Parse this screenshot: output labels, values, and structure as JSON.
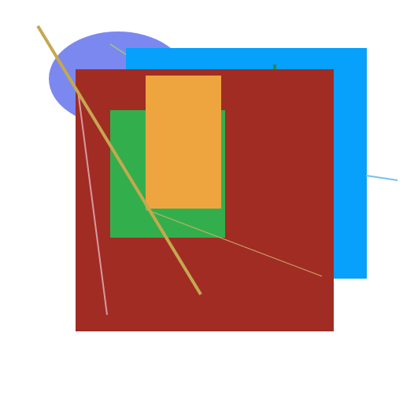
{
  "scene": {
    "background": "#ffffff",
    "shapes": {
      "ellipse": {
        "kind": "ellipse",
        "color": "#7b88ef"
      },
      "blue_rect": {
        "kind": "rectangle",
        "color": "#07a0fb"
      },
      "red_rect": {
        "kind": "rectangle",
        "color": "#a12c24"
      },
      "green_rect": {
        "kind": "rectangle",
        "color": "#33ae4d"
      },
      "orange_rect": {
        "kind": "rectangle",
        "color": "#eea540"
      }
    },
    "lines": {
      "gold_diagonal": {
        "color": "#c5a84f"
      },
      "pink_line": {
        "color": "#d79aa0"
      },
      "thin_green_line": {
        "color": "#9acb7a"
      },
      "light_blue_line": {
        "color": "#76c0ef"
      },
      "tan_line": {
        "color": "#cdb06a"
      },
      "dark_green_tick": {
        "color": "#2f8c2a"
      }
    }
  }
}
